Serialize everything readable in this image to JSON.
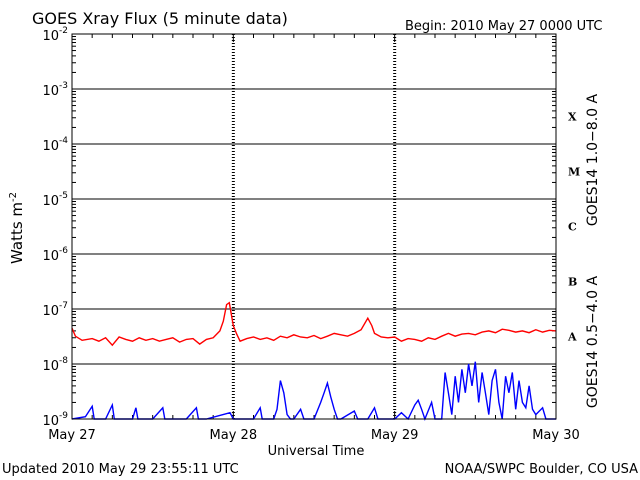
{
  "chart_data": {
    "type": "line",
    "title": "GOES Xray Flux (5 minute data)",
    "begin_text": "Begin:  2010 May 27 0000 UTC",
    "xlabel": "Universal Time",
    "ylabel": "Watts m",
    "ylabel_sup": "-2",
    "y_scale": "log",
    "ylim": [
      1e-09,
      0.01
    ],
    "xlim_hours": [
      0,
      72
    ],
    "x_ticks": [
      {
        "label": "May 27",
        "hour": 0
      },
      {
        "label": "May 28",
        "hour": 24
      },
      {
        "label": "May 29",
        "hour": 48
      },
      {
        "label": "May 30",
        "hour": 72
      }
    ],
    "y_ticks": [
      {
        "base": "10",
        "exp": "-9",
        "value": 1e-09
      },
      {
        "base": "10",
        "exp": "-8",
        "value": 1e-08
      },
      {
        "base": "10",
        "exp": "-7",
        "value": 1e-07
      },
      {
        "base": "10",
        "exp": "-6",
        "value": 1e-06
      },
      {
        "base": "10",
        "exp": "-5",
        "value": 1e-05
      },
      {
        "base": "10",
        "exp": "-4",
        "value": 0.0001
      },
      {
        "base": "10",
        "exp": "-3",
        "value": 0.001
      },
      {
        "base": "10",
        "exp": "-2",
        "value": 0.01
      }
    ],
    "flare_classes": [
      {
        "label": "A",
        "value": 3.16e-08
      },
      {
        "label": "B",
        "value": 3.16e-07
      },
      {
        "label": "C",
        "value": 3.16e-06
      },
      {
        "label": "M",
        "value": 3.16e-05
      },
      {
        "label": "X",
        "value": 0.000316
      }
    ],
    "grid": true,
    "series": [
      {
        "name": "GOES14 1.0−8.0 A",
        "color": "#ff0000",
        "points": [
          [
            0,
            4.5e-08
          ],
          [
            0.5,
            3.2e-08
          ],
          [
            1.5,
            2.7e-08
          ],
          [
            3,
            2.9e-08
          ],
          [
            4,
            2.6e-08
          ],
          [
            5,
            3e-08
          ],
          [
            6,
            2.2e-08
          ],
          [
            7,
            3.1e-08
          ],
          [
            8,
            2.8e-08
          ],
          [
            9,
            2.6e-08
          ],
          [
            10,
            3e-08
          ],
          [
            11,
            2.7e-08
          ],
          [
            12,
            2.9e-08
          ],
          [
            13,
            2.6e-08
          ],
          [
            14,
            2.8e-08
          ],
          [
            15,
            3e-08
          ],
          [
            16,
            2.5e-08
          ],
          [
            17,
            2.8e-08
          ],
          [
            18,
            2.9e-08
          ],
          [
            19,
            2.3e-08
          ],
          [
            20,
            2.8e-08
          ],
          [
            21,
            3e-08
          ],
          [
            22,
            4e-08
          ],
          [
            22.5,
            6e-08
          ],
          [
            23,
            1.2e-07
          ],
          [
            23.4,
            1.3e-07
          ],
          [
            23.7,
            8e-08
          ],
          [
            24,
            5e-08
          ],
          [
            24.5,
            3.5e-08
          ],
          [
            25,
            2.6e-08
          ],
          [
            26,
            2.9e-08
          ],
          [
            27,
            3.1e-08
          ],
          [
            28,
            2.8e-08
          ],
          [
            29,
            3e-08
          ],
          [
            30,
            2.7e-08
          ],
          [
            31,
            3.2e-08
          ],
          [
            32,
            3e-08
          ],
          [
            33,
            3.4e-08
          ],
          [
            34,
            3.1e-08
          ],
          [
            35,
            3e-08
          ],
          [
            36,
            3.3e-08
          ],
          [
            37,
            2.9e-08
          ],
          [
            38,
            3.2e-08
          ],
          [
            39,
            3.6e-08
          ],
          [
            40,
            3.4e-08
          ],
          [
            41,
            3.2e-08
          ],
          [
            42,
            3.6e-08
          ],
          [
            43,
            4.2e-08
          ],
          [
            44,
            6.8e-08
          ],
          [
            44.6,
            5e-08
          ],
          [
            45,
            3.6e-08
          ],
          [
            46,
            3.1e-08
          ],
          [
            47,
            3e-08
          ],
          [
            48,
            3.1e-08
          ],
          [
            49,
            2.6e-08
          ],
          [
            50,
            2.9e-08
          ],
          [
            51,
            2.8e-08
          ],
          [
            52,
            2.6e-08
          ],
          [
            53,
            3e-08
          ],
          [
            54,
            2.8e-08
          ],
          [
            55,
            3.2e-08
          ],
          [
            56,
            3.6e-08
          ],
          [
            57,
            3.2e-08
          ],
          [
            58,
            3.5e-08
          ],
          [
            59,
            3.6e-08
          ],
          [
            60,
            3.4e-08
          ],
          [
            61,
            3.8e-08
          ],
          [
            62,
            4e-08
          ],
          [
            63,
            3.7e-08
          ],
          [
            64,
            4.3e-08
          ],
          [
            65,
            4.1e-08
          ],
          [
            66,
            3.8e-08
          ],
          [
            67,
            4e-08
          ],
          [
            68,
            3.7e-08
          ],
          [
            69,
            4.2e-08
          ],
          [
            70,
            3.8e-08
          ],
          [
            71,
            4.1e-08
          ],
          [
            72,
            4e-08
          ]
        ]
      },
      {
        "name": "GOES14 0.5−4.0 A",
        "color": "#0000ff",
        "points": [
          [
            0,
            1e-09
          ],
          [
            2,
            1.1e-09
          ],
          [
            3,
            1.7e-09
          ],
          [
            3.3,
            1e-09
          ],
          [
            5,
            1e-09
          ],
          [
            6,
            1.8e-09
          ],
          [
            6.3,
            1e-09
          ],
          [
            9,
            1e-09
          ],
          [
            9.5,
            1.6e-09
          ],
          [
            9.8,
            1e-09
          ],
          [
            12,
            1e-09
          ],
          [
            13.5,
            1.6e-09
          ],
          [
            13.8,
            1e-09
          ],
          [
            17,
            1e-09
          ],
          [
            18.5,
            1.6e-09
          ],
          [
            18.8,
            1e-09
          ],
          [
            20,
            1e-09
          ],
          [
            23.5,
            1.3e-09
          ],
          [
            24,
            1e-09
          ],
          [
            27,
            1e-09
          ],
          [
            28,
            1.6e-09
          ],
          [
            28.3,
            1e-09
          ],
          [
            30,
            1e-09
          ],
          [
            30.5,
            1.5e-09
          ],
          [
            31,
            5e-09
          ],
          [
            31.5,
            3e-09
          ],
          [
            32,
            1.2e-09
          ],
          [
            32.5,
            1e-09
          ],
          [
            33,
            1e-09
          ],
          [
            34,
            1.5e-09
          ],
          [
            34.5,
            1e-09
          ],
          [
            36,
            1e-09
          ],
          [
            37,
            2e-09
          ],
          [
            37.5,
            3e-09
          ],
          [
            38,
            4.5e-09
          ],
          [
            38.5,
            2.5e-09
          ],
          [
            39,
            1.5e-09
          ],
          [
            39.5,
            1e-09
          ],
          [
            40,
            1e-09
          ],
          [
            42,
            1.4e-09
          ],
          [
            42.5,
            1e-09
          ],
          [
            44,
            1e-09
          ],
          [
            45,
            1.6e-09
          ],
          [
            45.5,
            1e-09
          ],
          [
            48,
            1e-09
          ],
          [
            49,
            1.3e-09
          ],
          [
            50,
            1e-09
          ],
          [
            51,
            1.8e-09
          ],
          [
            51.5,
            2.2e-09
          ],
          [
            52,
            1.5e-09
          ],
          [
            52.5,
            1e-09
          ],
          [
            53.5,
            2e-09
          ],
          [
            54,
            1e-09
          ],
          [
            55,
            1e-09
          ],
          [
            55.5,
            7e-09
          ],
          [
            56,
            3e-09
          ],
          [
            56.5,
            1.2e-09
          ],
          [
            57,
            6e-09
          ],
          [
            57.5,
            2e-09
          ],
          [
            58,
            8e-09
          ],
          [
            58.5,
            3e-09
          ],
          [
            59,
            1e-08
          ],
          [
            59.5,
            4e-09
          ],
          [
            60,
            1.1e-08
          ],
          [
            60.5,
            2e-09
          ],
          [
            61,
            7e-09
          ],
          [
            61.5,
            3e-09
          ],
          [
            62,
            1.2e-09
          ],
          [
            62.5,
            5e-09
          ],
          [
            63,
            8e-09
          ],
          [
            63.5,
            2e-09
          ],
          [
            64,
            1e-09
          ],
          [
            64.5,
            6e-09
          ],
          [
            65,
            3e-09
          ],
          [
            65.5,
            7e-09
          ],
          [
            66,
            1.5e-09
          ],
          [
            66.5,
            5e-09
          ],
          [
            67,
            2e-09
          ],
          [
            67.5,
            1.6e-09
          ],
          [
            68,
            4e-09
          ],
          [
            68.5,
            1.5e-09
          ],
          [
            69,
            1.2e-09
          ],
          [
            70,
            1.6e-09
          ],
          [
            70.5,
            1e-09
          ],
          [
            72,
            1e-09
          ]
        ]
      }
    ]
  },
  "footer": {
    "updated": "Updated 2010 May 29 23:55:11 UTC",
    "credit": "NOAA/SWPC Boulder, CO USA"
  }
}
